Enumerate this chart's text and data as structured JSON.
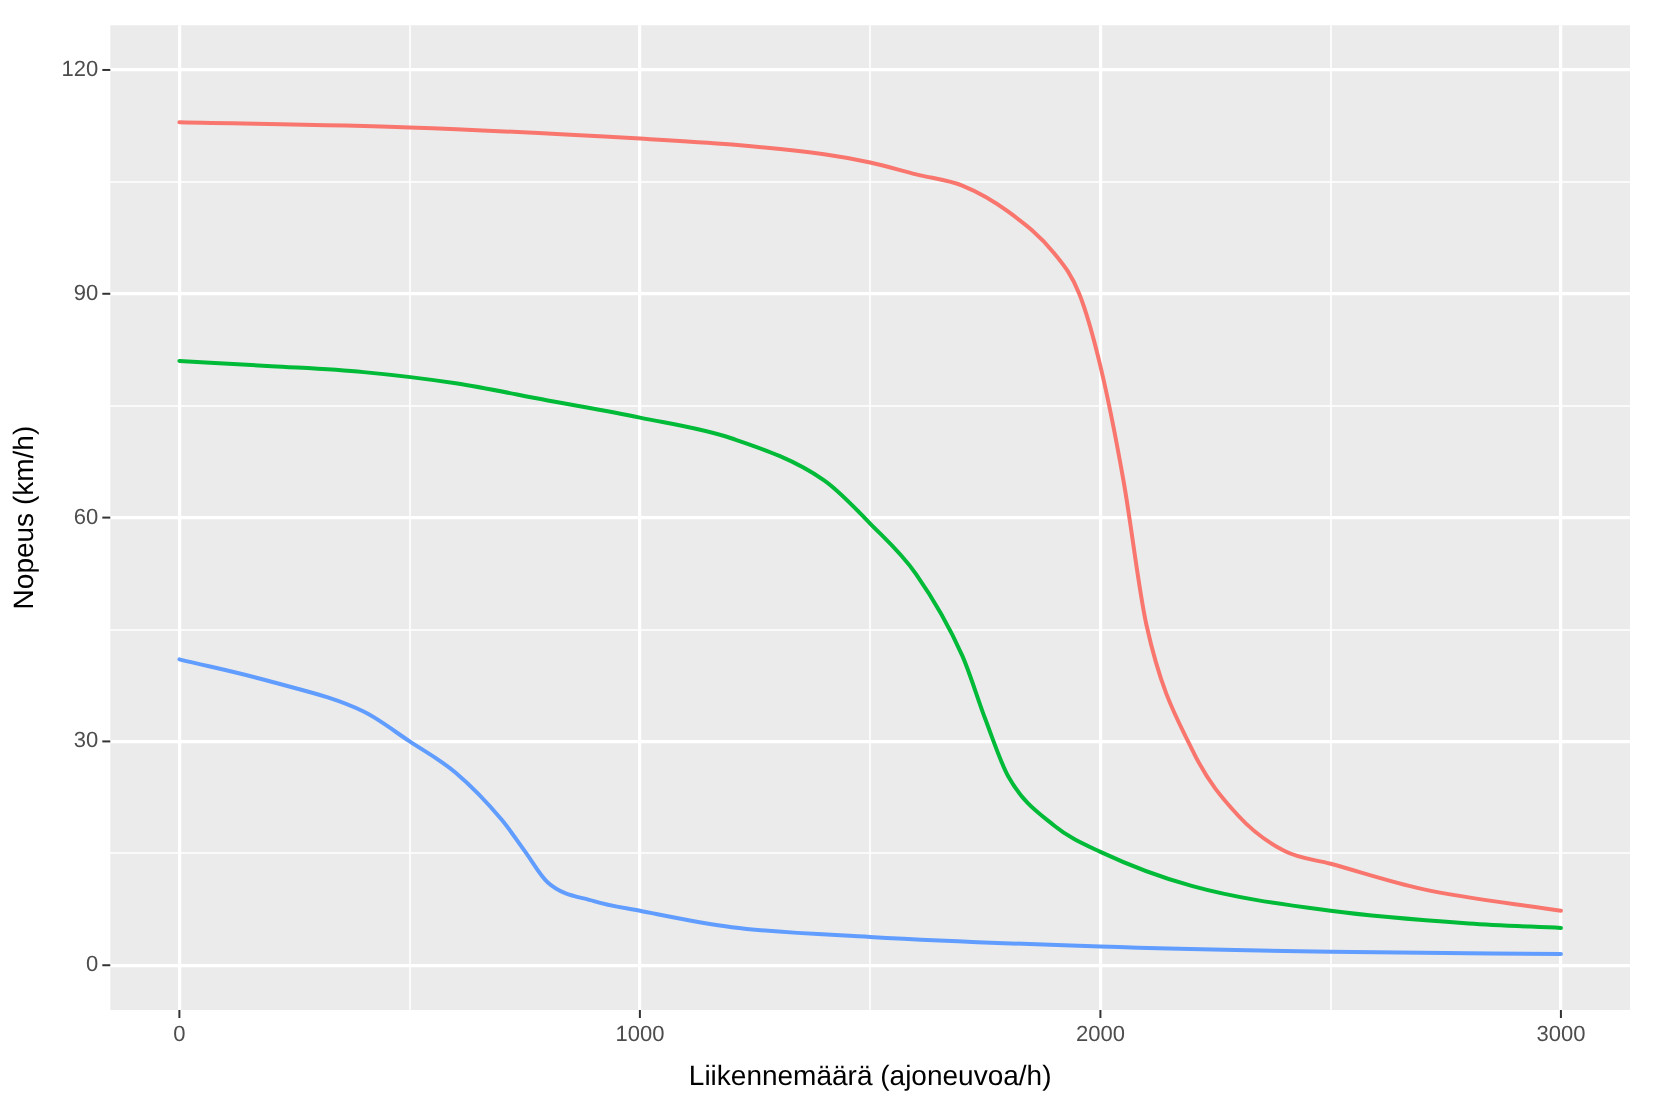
{
  "chart_data": {
    "type": "line",
    "xlabel": "Liikennemäärä (ajoneuvoa/h)",
    "ylabel": "Nopeus (km/h)",
    "xlim": [
      -150,
      3150
    ],
    "ylim": [
      -6,
      126
    ],
    "xticks": [
      0,
      {
        "value": 500,
        "label": null
      },
      1000,
      {
        "value": 1500,
        "label": null
      },
      2000,
      {
        "value": 2500,
        "label": null
      },
      3000
    ],
    "yticks": [
      0,
      {
        "value": 15,
        "label": null
      },
      30,
      {
        "value": 45,
        "label": null
      },
      60,
      {
        "value": 75,
        "label": null
      },
      90,
      {
        "value": 105,
        "label": null
      },
      120
    ],
    "grid": true,
    "legend": false,
    "marker": "none",
    "line_style": "solid",
    "series": [
      {
        "color": "#f8766d",
        "x": [
          0,
          500,
          1000,
          1200,
          1400,
          1500,
          1600,
          1700,
          1800,
          1900,
          1954,
          2000,
          2050,
          2100,
          2200,
          2300,
          2400,
          2500,
          2700,
          3000
        ],
        "values": [
          113,
          112.3,
          110.8,
          110,
          108.7,
          107.6,
          106,
          104.5,
          101,
          95.4,
          90,
          80.3,
          65,
          45.6,
          28.8,
          20,
          15.3,
          13.6,
          10.2,
          7.3
        ]
      },
      {
        "color": "#00ba38",
        "x": [
          0,
          200,
          400,
          600,
          800,
          1000,
          1200,
          1400,
          1500,
          1600,
          1700,
          1750,
          1800,
          1900,
          2000,
          2200,
          2500,
          2800,
          3000
        ],
        "values": [
          81,
          80.3,
          79.5,
          78,
          75.7,
          73.4,
          70.6,
          65,
          59.2,
          52.4,
          41.5,
          33,
          25.3,
          18.7,
          15.2,
          10.6,
          7.3,
          5.6,
          5
        ]
      },
      {
        "color": "#619cff",
        "x": [
          0,
          200,
          400,
          500,
          600,
          700,
          750,
          800,
          900,
          1000,
          1200,
          1500,
          2000,
          2500,
          3000
        ],
        "values": [
          41,
          38,
          34,
          30,
          25.8,
          19.5,
          15.3,
          11.1,
          8.6,
          7.3,
          5.1,
          3.8,
          2.5,
          1.8,
          1.5
        ]
      }
    ]
  }
}
